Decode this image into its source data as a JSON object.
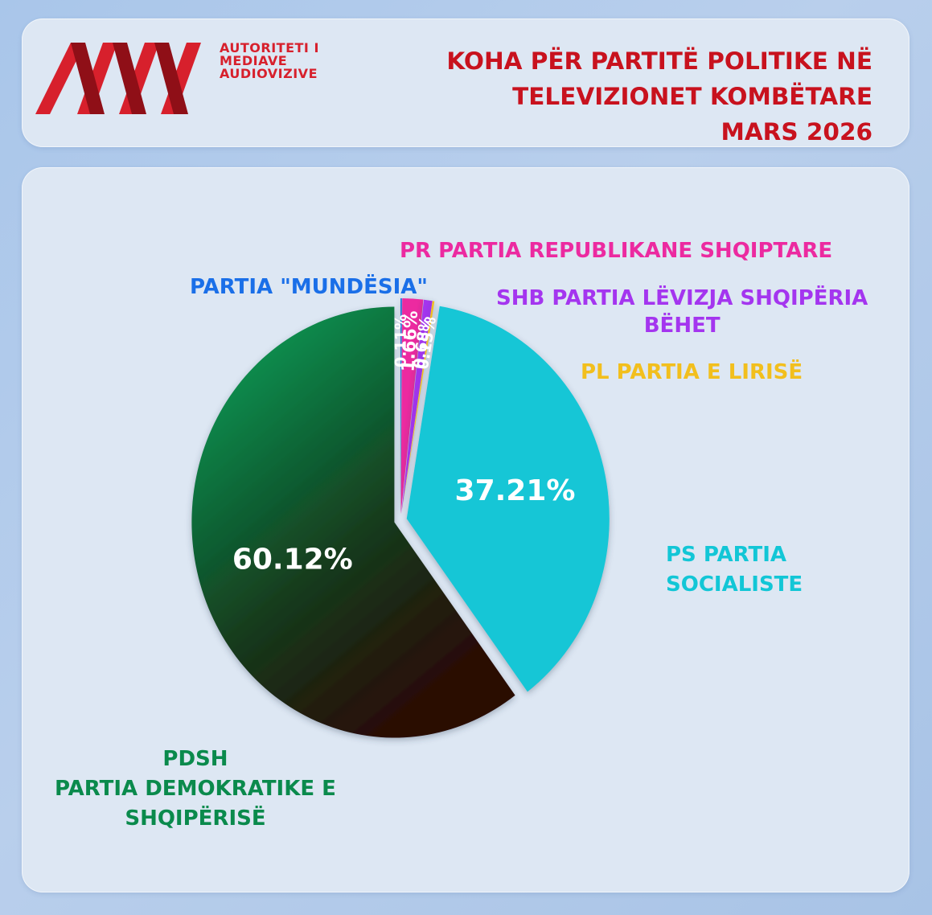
{
  "header": {
    "org_lines": [
      "AUTORITETI I",
      "MEDIAVE",
      "AUDIOVIZIVE"
    ],
    "title_lines": [
      "KOHA PËR PARTITË POLITIKE NË",
      "TELEVIZIONET KOMBËTARE",
      "MARS 2026"
    ]
  },
  "chart_data": {
    "type": "pie",
    "title": "KOHA PËR PARTITË POLITIKE NË TELEVIZIONET KOMBËTARE MARS 2026",
    "start_angle_deg": 0,
    "direction": "clockwise",
    "slices": [
      {
        "name_lines": [
          "PARTIA \"MUNDËSIA\""
        ],
        "value": 0.11,
        "label": "0.11%",
        "color": "#1a6fe8"
      },
      {
        "name_lines": [
          "PR PARTIA REPUBLIKANE SHQIPTARE"
        ],
        "value": 1.66,
        "label": "1.66%",
        "color": "#ec2aa0"
      },
      {
        "name_lines": [
          "SHB PARTIA LËVIZJA SHQIPËRIA",
          "BËHET"
        ],
        "value": 0.68,
        "label": "0.68%",
        "color": "#a435ef"
      },
      {
        "name_lines": [
          "PL PARTIA E LIRISË"
        ],
        "value": 0.15,
        "label": "0.15%",
        "color": "#f2bf1d"
      },
      {
        "name_lines": [
          "PS PARTIA",
          "SOCIALISTE"
        ],
        "value": 37.21,
        "label": "37.21%",
        "color": "#12c6d6"
      },
      {
        "name_lines": [
          "PDSH",
          "PARTIA DEMOKRATIKE E",
          "SHQIPËRISË"
        ],
        "value": 60.12,
        "label": "60.12%",
        "color": "#0a8a4c",
        "color_dark": "#2a0b05"
      }
    ],
    "label_colors": [
      "#1a6fe8",
      "#ec2aa0",
      "#a435ef",
      "#f2bf1d",
      "#12c6d6",
      "#0a8a4c"
    ],
    "legend": "labels-around-pie"
  }
}
